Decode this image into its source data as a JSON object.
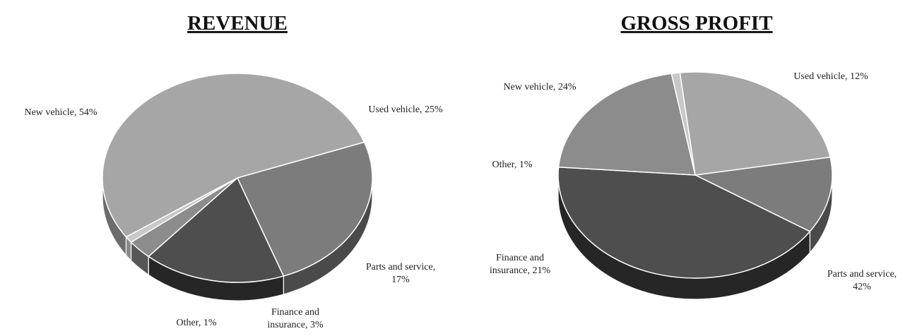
{
  "chart_data": [
    {
      "type": "pie",
      "style": "3d",
      "title": "REVENUE",
      "start_angle_deg": -20,
      "slices": [
        {
          "name": "Used vehicle",
          "value": 25,
          "label_lines": [
            "Used vehicle, 25%"
          ],
          "color": "#7c7c7c",
          "side_color": "#4a4a4a"
        },
        {
          "name": "Parts and service",
          "value": 17,
          "label_lines": [
            "Parts and service,",
            "17%"
          ],
          "color": "#4e4e4e",
          "side_color": "#262626"
        },
        {
          "name": "Finance and insurance",
          "value": 3,
          "label_lines": [
            "Finance and",
            "insurance, 3%"
          ],
          "color": "#8c8c8c",
          "side_color": "#565656"
        },
        {
          "name": "Other",
          "value": 1,
          "label_lines": [
            "Other, 1%"
          ],
          "color": "#c8c8c8",
          "side_color": "#8a8a8a"
        },
        {
          "name": "New vehicle",
          "value": 54,
          "label_lines": [
            "New vehicle, 54%"
          ],
          "color": "#a6a6a6",
          "side_color": "#6c6c6c"
        }
      ]
    },
    {
      "type": "pie",
      "style": "3d",
      "title": "GROSS PROFIT",
      "start_angle_deg": -10,
      "slices": [
        {
          "name": "Used vehicle",
          "value": 12,
          "label_lines": [
            "Used vehicle, 12%"
          ],
          "color": "#7c7c7c",
          "side_color": "#4a4a4a"
        },
        {
          "name": "Parts and service",
          "value": 42,
          "label_lines": [
            "Parts and service,",
            "42%"
          ],
          "color": "#4e4e4e",
          "side_color": "#262626"
        },
        {
          "name": "Finance and insurance",
          "value": 21,
          "label_lines": [
            "Finance and",
            "insurance, 21%"
          ],
          "color": "#8c8c8c",
          "side_color": "#565656"
        },
        {
          "name": "Other",
          "value": 1,
          "label_lines": [
            "Other, 1%"
          ],
          "color": "#c8c8c8",
          "side_color": "#8a8a8a"
        },
        {
          "name": "New vehicle",
          "value": 24,
          "label_lines": [
            "New vehicle, 24%"
          ],
          "color": "#a6a6a6",
          "side_color": "#6c6c6c"
        }
      ]
    }
  ]
}
